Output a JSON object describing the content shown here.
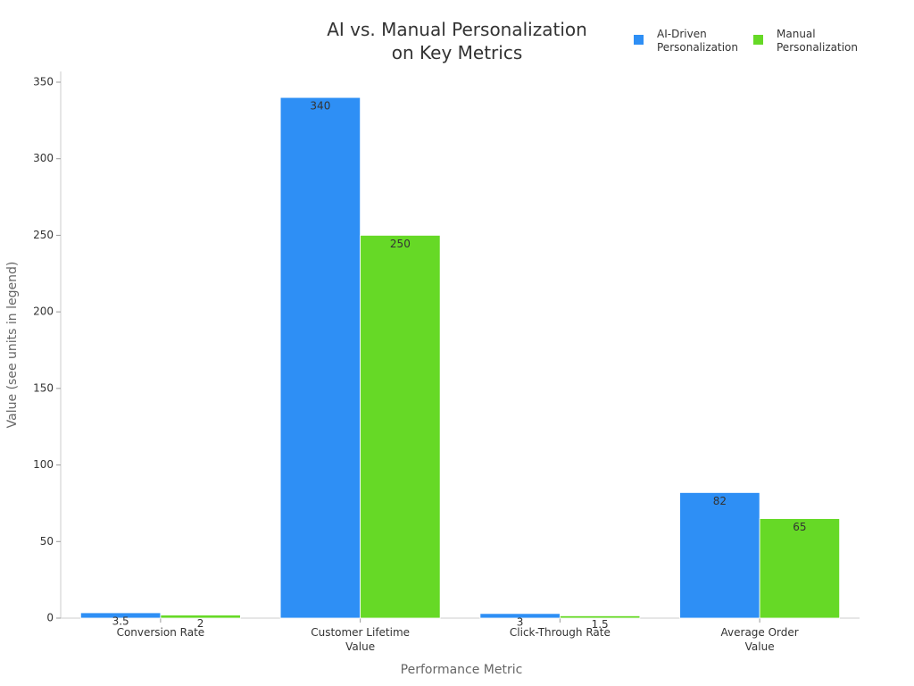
{
  "chart_data": {
    "type": "bar",
    "title": "AI vs. Manual Personalization on Key Metrics",
    "x_label": "Performance Metric",
    "y_label": "Value (see units in legend)",
    "categories": [
      "Conversion Rate",
      "Customer Lifetime Value",
      "Click-Through Rate",
      "Average Order Value"
    ],
    "series": [
      {
        "name": "AI-Driven Personalization",
        "color": "#2e8ff5",
        "values": [
          3.5,
          340,
          3,
          82
        ]
      },
      {
        "name": "Manual Personalization",
        "color": "#66d926",
        "values": [
          2,
          250,
          1.5,
          65
        ]
      }
    ],
    "ylim": [
      0,
      357
    ],
    "yticks": [
      0,
      50,
      100,
      150,
      200,
      250,
      300,
      350
    ],
    "grid": false,
    "legend": "top-right"
  }
}
